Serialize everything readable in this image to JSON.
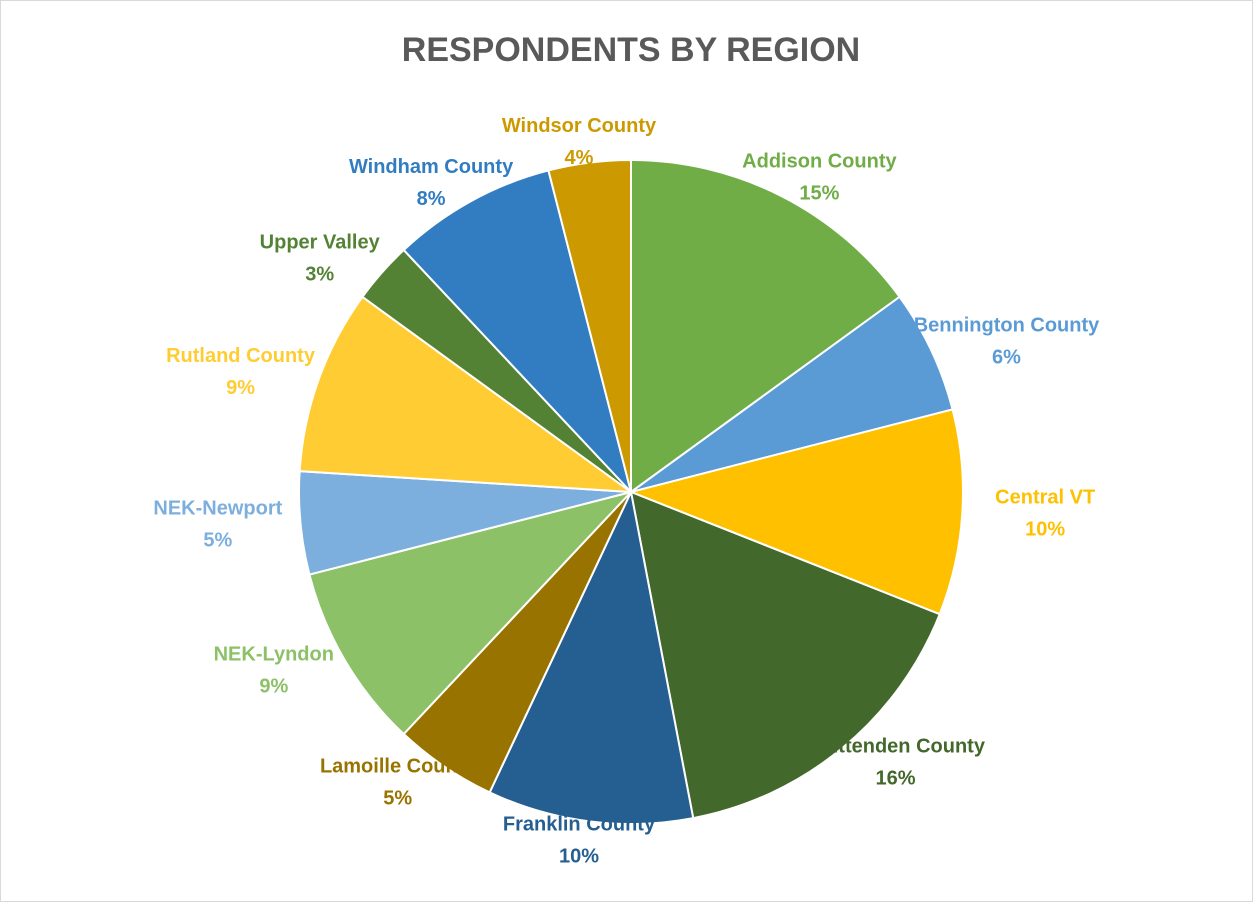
{
  "chart_data": {
    "type": "pie",
    "title": "RESPONDENTS BY REGION",
    "categories": [
      "Addison County",
      "Bennington County",
      "Central VT",
      "Chittenden County",
      "Franklin County",
      "Lamoille County",
      "NEK-Lyndon",
      "NEK-Newport",
      "Rutland County",
      "Upper Valley",
      "Windham County",
      "Windsor County"
    ],
    "values": [
      15,
      6,
      10,
      16,
      10,
      5,
      9,
      5,
      9,
      3,
      8,
      4
    ],
    "value_labels": [
      "15%",
      "6%",
      "10%",
      "16%",
      "10%",
      "5%",
      "9%",
      "5%",
      "9%",
      "3%",
      "8%",
      "4%"
    ],
    "colors": [
      "#70ad47",
      "#5b9bd5",
      "#ffc000",
      "#43682b",
      "#255e91",
      "#997300",
      "#8cc168",
      "#7cafdd",
      "#ffcd33",
      "#548235",
      "#327dc2",
      "#cc9a00"
    ]
  }
}
